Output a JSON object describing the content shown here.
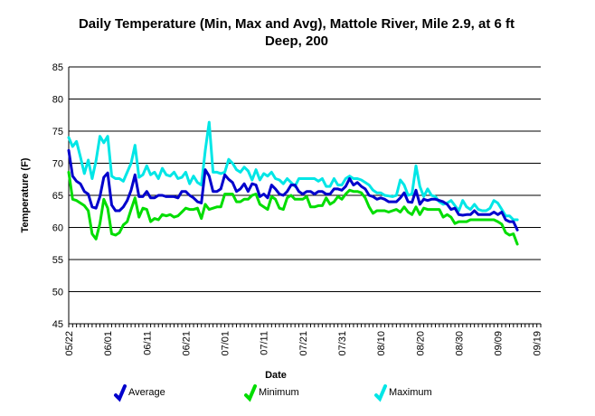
{
  "chart_data": {
    "type": "line",
    "title": "Daily Temperature (Min, Max and Avg), Mattole River, Mile 2.9, at 6 ft Deep, 200",
    "title_lines": [
      "Daily Temperature (Min, Max and Avg), Mattole River, Mile 2.9, at 6 ft",
      "Deep, 200"
    ],
    "xlabel": "Date",
    "ylabel": "Temperature (F)",
    "ylim": [
      45,
      85
    ],
    "yticks": [
      45,
      50,
      55,
      60,
      65,
      70,
      75,
      80,
      85
    ],
    "grid": "horizontal",
    "legend_position": "bottom",
    "x_start": "05/22",
    "x_end": "09/22",
    "xtick_labels": [
      "05/22",
      "06/01",
      "06/11",
      "06/21",
      "07/01",
      "07/11",
      "07/21",
      "07/31",
      "08/10",
      "08/20",
      "08/30",
      "09/09",
      "09/19"
    ],
    "series": [
      {
        "name": "Average",
        "color": "#0000cc",
        "values": [
          72.0,
          68.0,
          67.2,
          66.8,
          65.6,
          65.2,
          63.2,
          63.0,
          64.8,
          67.8,
          68.5,
          63.5,
          62.6,
          62.6,
          63.2,
          64.2,
          65.8,
          68.2,
          64.8,
          64.8,
          65.6,
          64.6,
          64.6,
          65.0,
          65.0,
          64.8,
          64.8,
          64.8,
          64.6,
          65.6,
          65.6,
          65.0,
          64.6,
          64.0,
          63.8,
          69.0,
          68.0,
          65.6,
          65.6,
          66.0,
          68.2,
          67.5,
          67.0,
          65.6,
          66.0,
          66.8,
          65.6,
          66.8,
          66.6,
          64.8,
          65.2,
          64.6,
          66.6,
          66.0,
          65.2,
          65.0,
          65.6,
          66.6,
          66.6,
          65.6,
          65.2,
          65.6,
          65.6,
          65.2,
          65.6,
          65.6,
          65.2,
          65.2,
          66.0,
          66.0,
          65.8,
          66.4,
          67.6,
          66.6,
          67.0,
          66.4,
          66.0,
          65.0,
          64.8,
          64.4,
          64.6,
          64.4,
          64.0,
          64.0,
          64.0,
          64.6,
          65.4,
          64.0,
          63.9,
          65.8,
          63.6,
          64.4,
          64.2,
          64.4,
          64.4,
          64.2,
          64.0,
          63.6,
          62.8,
          63.0,
          62.0,
          61.9,
          62.0,
          62.0,
          62.6,
          62.0,
          62.0,
          62.0,
          62.0,
          62.4,
          62.0,
          62.4,
          61.2,
          60.9,
          60.9,
          59.6
        ]
      },
      {
        "name": "Minimum",
        "color": "#00dd00",
        "values": [
          68.6,
          64.4,
          64.2,
          63.8,
          63.4,
          62.6,
          59.0,
          58.2,
          60.6,
          64.4,
          63.0,
          59.0,
          58.8,
          59.2,
          60.4,
          60.9,
          62.8,
          64.6,
          61.6,
          63.0,
          62.8,
          60.9,
          61.4,
          61.2,
          62.0,
          61.8,
          62.0,
          61.6,
          61.8,
          62.4,
          63.0,
          62.8,
          62.8,
          63.0,
          61.4,
          63.6,
          62.8,
          63.0,
          63.2,
          63.2,
          65.2,
          65.2,
          65.2,
          64.0,
          64.0,
          64.4,
          64.4,
          65.0,
          65.2,
          63.6,
          63.2,
          62.8,
          64.8,
          64.4,
          63.0,
          62.8,
          64.6,
          65.0,
          64.4,
          64.4,
          64.4,
          64.8,
          63.2,
          63.2,
          63.4,
          63.4,
          64.6,
          63.6,
          64.0,
          64.8,
          64.4,
          65.2,
          65.8,
          65.6,
          65.6,
          65.4,
          64.6,
          63.2,
          62.2,
          62.6,
          62.6,
          62.6,
          62.4,
          62.6,
          62.8,
          62.4,
          63.2,
          62.4,
          62.0,
          63.2,
          62.0,
          63.0,
          62.8,
          62.8,
          62.8,
          62.8,
          61.6,
          62.0,
          61.6,
          60.6,
          60.9,
          60.9,
          60.9,
          61.2,
          61.2,
          61.2,
          61.2,
          61.2,
          61.2,
          61.2,
          60.9,
          60.5,
          59.2,
          58.8,
          59.0,
          57.4
        ]
      },
      {
        "name": "Maximum",
        "color": "#00e6e6",
        "values": [
          74.0,
          72.6,
          73.4,
          71.0,
          68.4,
          70.5,
          67.6,
          70.4,
          74.2,
          73.2,
          74.2,
          68.0,
          67.6,
          67.6,
          67.2,
          68.6,
          70.0,
          72.8,
          67.8,
          68.2,
          69.6,
          68.2,
          68.6,
          67.6,
          69.2,
          68.2,
          68.0,
          68.6,
          67.6,
          67.8,
          68.6,
          66.8,
          68.0,
          67.0,
          66.6,
          72.0,
          76.4,
          68.6,
          68.6,
          68.4,
          68.6,
          70.6,
          70.0,
          69.0,
          68.6,
          69.4,
          68.8,
          67.4,
          69.0,
          67.4,
          68.4,
          68.0,
          68.6,
          67.6,
          67.4,
          66.8,
          67.6,
          67.0,
          66.4,
          67.6,
          67.6,
          67.6,
          67.6,
          67.6,
          67.2,
          67.6,
          66.4,
          66.4,
          67.6,
          66.6,
          66.6,
          67.6,
          68.0,
          67.6,
          67.6,
          67.4,
          67.0,
          66.6,
          65.8,
          65.4,
          65.4,
          65.0,
          64.9,
          64.8,
          65.0,
          67.4,
          66.6,
          65.0,
          65.2,
          69.6,
          66.4,
          64.8,
          66.0,
          65.0,
          64.8,
          64.0,
          63.6,
          63.8,
          64.2,
          63.4,
          62.6,
          64.2,
          63.2,
          62.8,
          63.6,
          62.8,
          62.6,
          62.6,
          63.0,
          64.2,
          63.8,
          62.8,
          61.8,
          61.8,
          61.2,
          61.2
        ]
      }
    ]
  }
}
